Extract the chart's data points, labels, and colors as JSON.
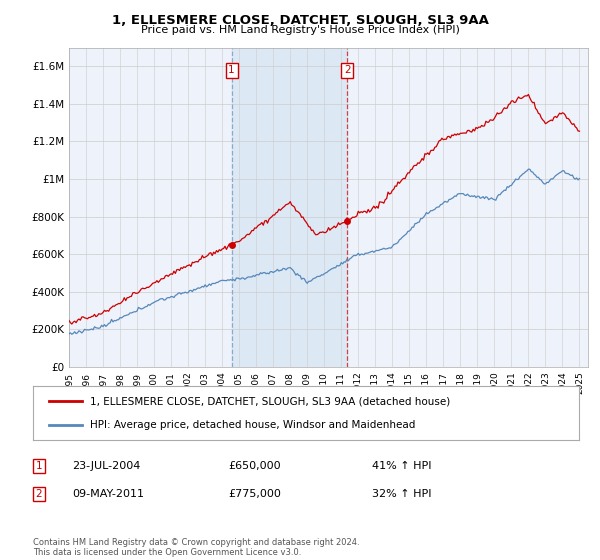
{
  "title": "1, ELLESMERE CLOSE, DATCHET, SLOUGH, SL3 9AA",
  "subtitle": "Price paid vs. HM Land Registry's House Price Index (HPI)",
  "ylim": [
    0,
    1700000
  ],
  "yticks": [
    0,
    200000,
    400000,
    600000,
    800000,
    1000000,
    1200000,
    1400000,
    1600000
  ],
  "ytick_labels": [
    "£0",
    "£200K",
    "£400K",
    "£600K",
    "£800K",
    "£1M",
    "£1.2M",
    "£1.4M",
    "£1.6M"
  ],
  "sale1_price": 650000,
  "sale1_label": "23-JUL-2004",
  "sale1_pct": "41% ↑ HPI",
  "sale1_x": 2004.556,
  "sale2_price": 775000,
  "sale2_label": "09-MAY-2011",
  "sale2_pct": "32% ↑ HPI",
  "sale2_x": 2011.361,
  "legend_line1": "1, ELLESMERE CLOSE, DATCHET, SLOUGH, SL3 9AA (detached house)",
  "legend_line2": "HPI: Average price, detached house, Windsor and Maidenhead",
  "footer": "Contains HM Land Registry data © Crown copyright and database right 2024.\nThis data is licensed under the Open Government Licence v3.0.",
  "red_color": "#cc0000",
  "blue_color": "#5588bb",
  "shade_color": "#dde8f5",
  "bg_color": "#eef2fa",
  "grid_color": "#cccccc",
  "sale1_vline_color": "#88aacc",
  "sale2_vline_color": "#cc4444"
}
